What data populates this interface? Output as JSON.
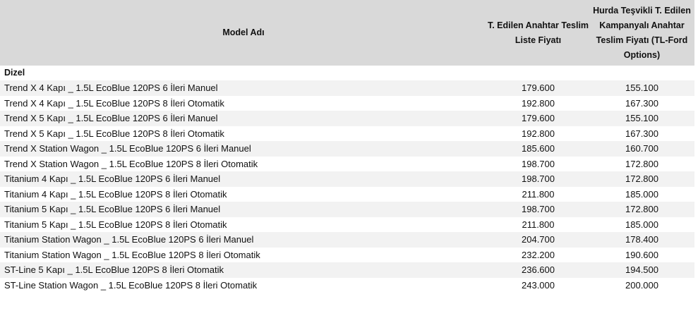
{
  "table": {
    "headers": {
      "model": "Model Adı",
      "list_price": "T. Edilen Anahtar Teslim Liste Fiyatı",
      "campaign_price": "Hurda Teşvikli T. Edilen Kampanyalı Anahtar Teslim Fiyatı (TL-Ford Options)"
    },
    "section": "Dizel",
    "rows": [
      {
        "model": "Trend X 4 Kapı _ 1.5L EcoBlue 120PS 6 İleri Manuel",
        "list_price": "179.600",
        "campaign_price": "155.100"
      },
      {
        "model": "Trend X 4 Kapı _ 1.5L EcoBlue 120PS 8 İleri Otomatik",
        "list_price": "192.800",
        "campaign_price": "167.300"
      },
      {
        "model": "Trend X 5 Kapı _ 1.5L EcoBlue 120PS 6 İleri Manuel",
        "list_price": "179.600",
        "campaign_price": "155.100"
      },
      {
        "model": "Trend X 5 Kapı _ 1.5L EcoBlue 120PS 8 İleri Otomatik",
        "list_price": "192.800",
        "campaign_price": "167.300"
      },
      {
        "model": "Trend X Station Wagon _ 1.5L EcoBlue 120PS 6 İleri Manuel",
        "list_price": "185.600",
        "campaign_price": "160.700"
      },
      {
        "model": "Trend X Station Wagon _ 1.5L EcoBlue 120PS 8 İleri Otomatik",
        "list_price": "198.700",
        "campaign_price": "172.800"
      },
      {
        "model": "Titanium 4 Kapı _ 1.5L EcoBlue 120PS 6 İleri Manuel",
        "list_price": "198.700",
        "campaign_price": "172.800"
      },
      {
        "model": "Titanium 4 Kapı _ 1.5L EcoBlue 120PS 8 İleri Otomatik",
        "list_price": "211.800",
        "campaign_price": "185.000"
      },
      {
        "model": "Titanium 5 Kapı _ 1.5L EcoBlue 120PS 6 İleri Manuel",
        "list_price": "198.700",
        "campaign_price": "172.800"
      },
      {
        "model": "Titanium 5 Kapı _ 1.5L EcoBlue 120PS 8 İleri Otomatik",
        "list_price": "211.800",
        "campaign_price": "185.000"
      },
      {
        "model": "Titanium Station Wagon _ 1.5L EcoBlue 120PS 6 İleri Manuel",
        "list_price": "204.700",
        "campaign_price": "178.400"
      },
      {
        "model": "Titanium Station Wagon _ 1.5L EcoBlue 120PS 8 İleri Otomatik",
        "list_price": "232.200",
        "campaign_price": "190.600"
      },
      {
        "model": "ST-Line 5 Kapı _ 1.5L EcoBlue 120PS 8 İleri Otomatik",
        "list_price": "236.600",
        "campaign_price": "194.500"
      },
      {
        "model": "ST-Line Station Wagon _ 1.5L EcoBlue 120PS 8 İleri Otomatik",
        "list_price": "243.000",
        "campaign_price": "200.000"
      }
    ],
    "colors": {
      "header_bg": "#d9d9d9",
      "stripe_bg": "#f2f2f2",
      "text": "#111111"
    }
  }
}
